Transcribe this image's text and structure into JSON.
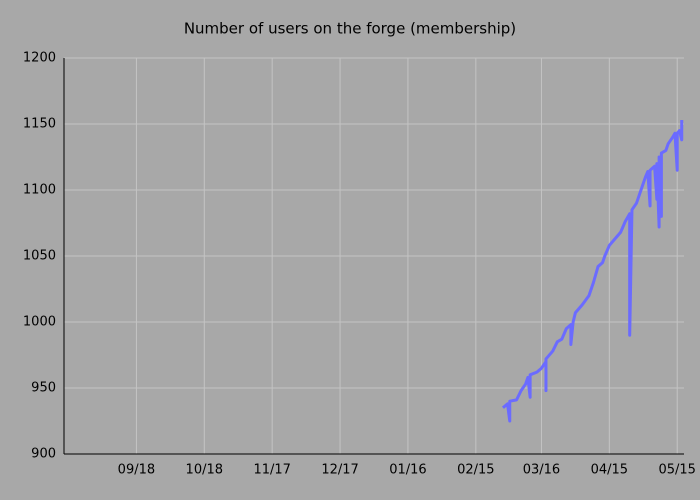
{
  "chart_data": {
    "type": "line",
    "title": "Number of users on the forge      (membership)",
    "x": [
      162,
      164,
      165,
      165,
      168,
      170,
      172,
      173,
      174,
      174,
      177,
      179,
      181,
      181,
      181,
      184,
      186,
      188,
      190,
      192,
      192,
      193,
      194,
      197,
      200,
      202,
      204,
      206,
      207,
      209,
      212,
      214,
      216,
      218,
      218,
      219,
      221,
      223,
      225,
      226,
      227,
      227,
      229,
      230,
      230,
      231,
      231,
      232,
      232,
      234,
      235,
      237,
      238,
      239,
      239,
      240,
      241,
      241
    ],
    "values": [
      935,
      938,
      925,
      940,
      941,
      948,
      953,
      958,
      943,
      960,
      962,
      965,
      970,
      948,
      972,
      978,
      985,
      987,
      995,
      998,
      983,
      1000,
      1007,
      1013,
      1020,
      1030,
      1042,
      1045,
      1050,
      1058,
      1064,
      1068,
      1076,
      1082,
      990,
      1085,
      1090,
      1100,
      1110,
      1114,
      1088,
      1115,
      1118,
      1093,
      1120,
      1072,
      1125,
      1080,
      1128,
      1130,
      1135,
      1140,
      1143,
      1115,
      1143,
      1145,
      1138,
      1153
    ],
    "color": "#6b6bff",
    "xlim": [
      -32,
      242
    ],
    "xticks": [
      {
        "value": 0,
        "label": "09/18"
      },
      {
        "value": 30,
        "label": "10/18"
      },
      {
        "value": 60,
        "label": "11/17"
      },
      {
        "value": 90,
        "label": "12/17"
      },
      {
        "value": 120,
        "label": "01/16"
      },
      {
        "value": 150,
        "label": "02/15"
      },
      {
        "value": 179,
        "label": "03/16"
      },
      {
        "value": 209,
        "label": "04/15"
      },
      {
        "value": 239,
        "label": "05/15"
      }
    ],
    "ylim": [
      900,
      1200
    ],
    "yticks": [
      900,
      950,
      1000,
      1050,
      1100,
      1150,
      1200
    ],
    "grid": true
  }
}
